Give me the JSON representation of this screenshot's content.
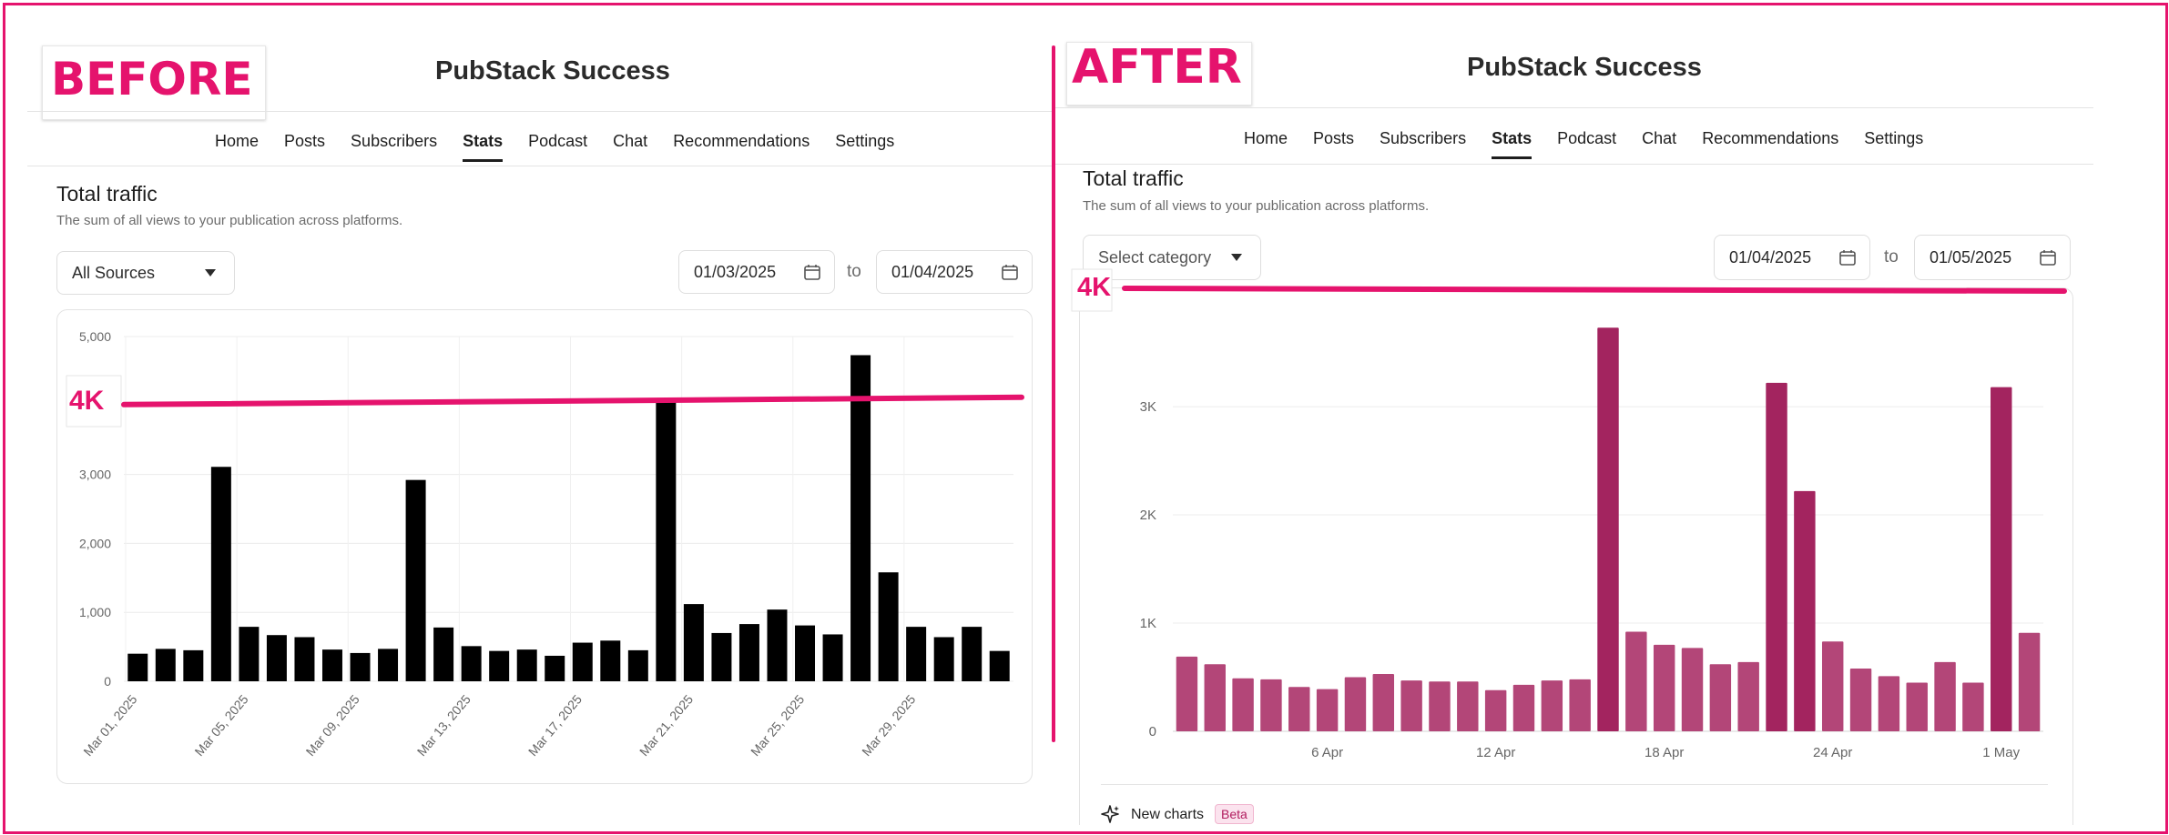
{
  "colors": {
    "accent": "#e5136d",
    "before_bar": "#000000",
    "after_bar": "#b34678",
    "after_bar_peak": "#a3245f"
  },
  "before": {
    "tag": "BEFORE",
    "pub_title": "PubStack Success",
    "nav": [
      "Home",
      "Posts",
      "Subscribers",
      "Stats",
      "Podcast",
      "Chat",
      "Recommendations",
      "Settings"
    ],
    "active_nav": "Stats",
    "section_title": "Total traffic",
    "section_desc": "The sum of all views to your publication across platforms.",
    "source_select": "All Sources",
    "date_from": "01/03/2025",
    "date_to": "01/04/2025",
    "to_label": "to",
    "annotation": "4K"
  },
  "after": {
    "tag": "AFTER",
    "pub_title": "PubStack Success",
    "nav": [
      "Home",
      "Posts",
      "Subscribers",
      "Stats",
      "Podcast",
      "Chat",
      "Recommendations",
      "Settings"
    ],
    "active_nav": "Stats",
    "section_title": "Total traffic",
    "section_desc": "The sum of all views to your publication across platforms.",
    "category_select": "Select category",
    "date_from": "01/04/2025",
    "date_to": "01/05/2025",
    "to_label": "to",
    "annotation": "4K",
    "new_charts_label": "New charts",
    "beta_badge": "Beta"
  },
  "chart_data": [
    {
      "type": "bar",
      "title": "Total traffic (before)",
      "xlabel": "",
      "ylabel": "",
      "ylim": [
        0,
        5000
      ],
      "yticks": [
        0,
        1000,
        2000,
        3000,
        5000
      ],
      "ytick_labels": [
        "0",
        "1,000",
        "2,000",
        "3,000",
        "5,000"
      ],
      "xtick_labels": [
        "Mar 01, 2025",
        "Mar 05, 2025",
        "Mar 09, 2025",
        "Mar 13, 2025",
        "Mar 17, 2025",
        "Mar 21, 2025",
        "Mar 25, 2025",
        "Mar 29, 2025"
      ],
      "values": [
        400,
        470,
        450,
        3110,
        790,
        670,
        640,
        460,
        410,
        470,
        2920,
        780,
        510,
        440,
        460,
        370,
        560,
        590,
        450,
        4100,
        1120,
        700,
        830,
        1040,
        810,
        680,
        4730,
        1580,
        790,
        640,
        790,
        440
      ],
      "reference_line": 4000
    },
    {
      "type": "bar",
      "title": "Total traffic (after)",
      "xlabel": "",
      "ylabel": "",
      "ylim": [
        0,
        3900
      ],
      "yticks": [
        0,
        1000,
        2000,
        3000
      ],
      "ytick_labels": [
        "0",
        "1K",
        "2K",
        "3K"
      ],
      "xtick_labels": [
        "6 Apr",
        "12 Apr",
        "18 Apr",
        "24 Apr",
        "1 May"
      ],
      "values": [
        690,
        620,
        490,
        480,
        410,
        390,
        500,
        530,
        470,
        460,
        460,
        380,
        430,
        470,
        480,
        3730,
        920,
        800,
        770,
        620,
        640,
        3220,
        2220,
        830,
        580,
        510,
        450,
        640,
        450,
        3180,
        910
      ],
      "reference_line": 4000
    }
  ]
}
